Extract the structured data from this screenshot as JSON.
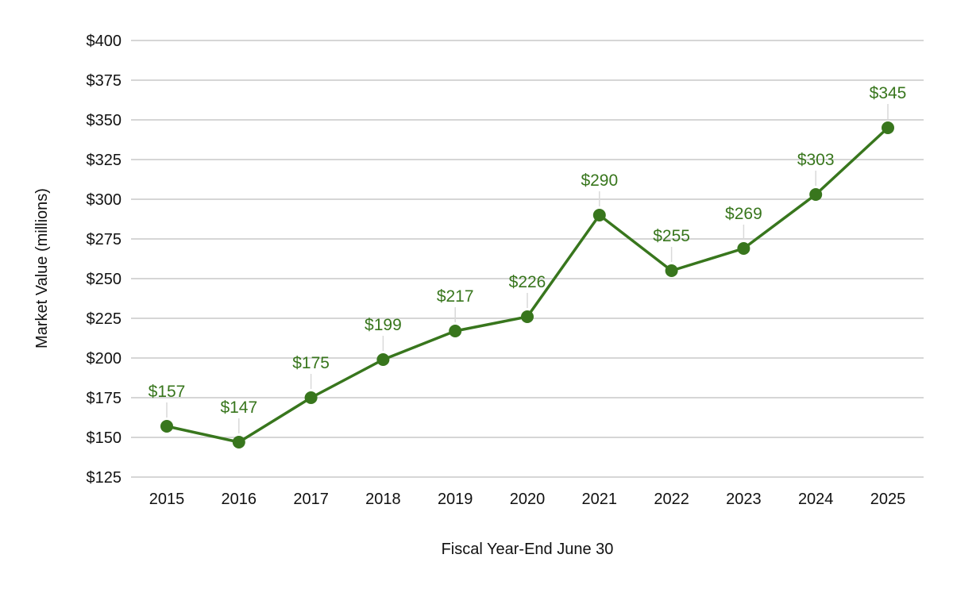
{
  "chart_data": {
    "type": "line",
    "xlabel": "Fiscal Year-End June 30",
    "ylabel": "Market Value (millions)",
    "ylim": [
      125,
      400
    ],
    "y_ticks": [
      {
        "value": 125,
        "label": "$125"
      },
      {
        "value": 150,
        "label": "$150"
      },
      {
        "value": 175,
        "label": "$175"
      },
      {
        "value": 200,
        "label": "$200"
      },
      {
        "value": 225,
        "label": "$225"
      },
      {
        "value": 250,
        "label": "$250"
      },
      {
        "value": 275,
        "label": "$275"
      },
      {
        "value": 300,
        "label": "$300"
      },
      {
        "value": 325,
        "label": "$325"
      },
      {
        "value": 350,
        "label": "$350"
      },
      {
        "value": 375,
        "label": "$375"
      },
      {
        "value": 400,
        "label": "$400"
      }
    ],
    "categories": [
      "2015",
      "2016",
      "2017",
      "2018",
      "2019",
      "2020",
      "2021",
      "2022",
      "2023",
      "2024",
      "2025"
    ],
    "series": [
      {
        "values": [
          157,
          147,
          175,
          199,
          217,
          226,
          290,
          255,
          269,
          303,
          345
        ],
        "data_labels": [
          "$157",
          "$147",
          "$175",
          "$199",
          "$217",
          "$226",
          "$290",
          "$255",
          "$269",
          "$303",
          "$345"
        ],
        "color": "#38761d"
      }
    ],
    "grid": true,
    "legend": false
  }
}
